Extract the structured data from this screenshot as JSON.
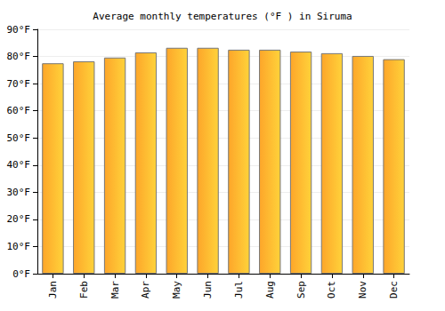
{
  "chart_data": {
    "type": "bar",
    "title": "Average monthly temperatures (°F ) in Siruma",
    "categories": [
      "Jan",
      "Feb",
      "Mar",
      "Apr",
      "May",
      "Jun",
      "Jul",
      "Aug",
      "Sep",
      "Oct",
      "Nov",
      "Dec"
    ],
    "values": [
      77.5,
      78.2,
      79.6,
      81.5,
      83.2,
      83.2,
      82.5,
      82.5,
      81.8,
      81.2,
      80.2,
      79.0
    ],
    "color": "#fda62a",
    "ylim": [
      0,
      90
    ],
    "yticks": [
      {
        "value": 0,
        "label": "0°F"
      },
      {
        "value": 10,
        "label": "10°F"
      },
      {
        "value": 20,
        "label": "20°F"
      },
      {
        "value": 30,
        "label": "30°F"
      },
      {
        "value": 40,
        "label": "40°F"
      },
      {
        "value": 50,
        "label": "50°F"
      },
      {
        "value": 60,
        "label": "60°F"
      },
      {
        "value": 70,
        "label": "70°F"
      },
      {
        "value": 80,
        "label": "80°F"
      },
      {
        "value": 90,
        "label": "90°F"
      }
    ],
    "grid": true
  }
}
